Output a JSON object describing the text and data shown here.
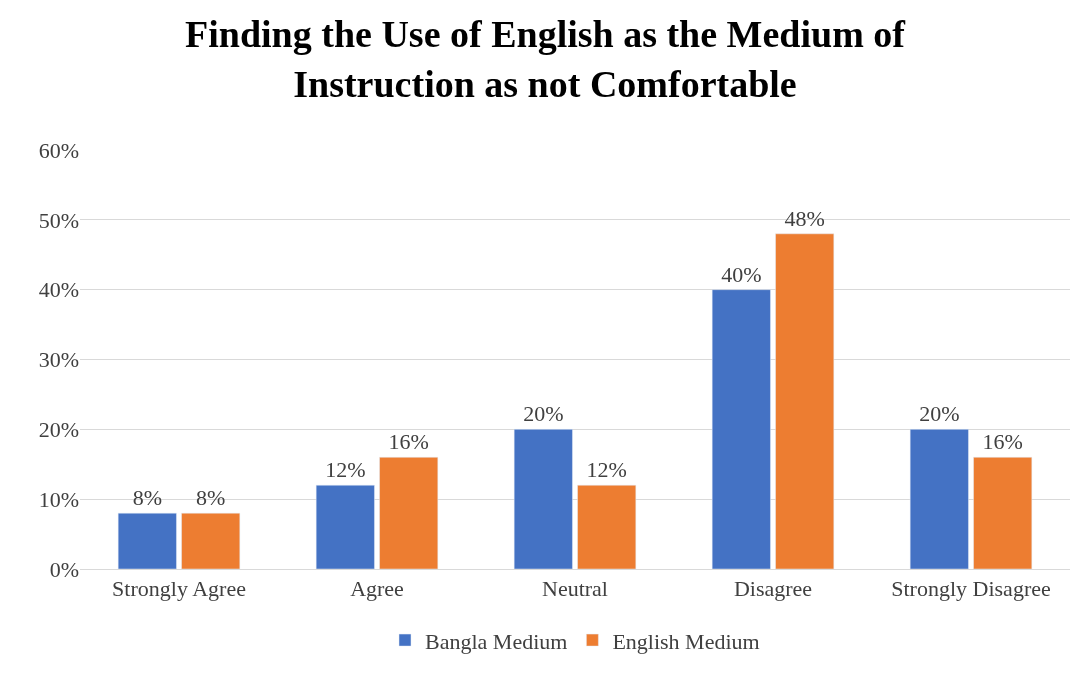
{
  "chart_data": {
    "type": "bar",
    "title": "Finding the Use of English as the Medium of Instruction as not Comfortable",
    "categories": [
      "Strongly Agree",
      "Agree",
      "Neutral",
      "Disagree",
      "Strongly Disagree"
    ],
    "series": [
      {
        "name": "Bangla Medium",
        "color": "#4472c4",
        "values": [
          8,
          12,
          20,
          40,
          20
        ],
        "value_labels": [
          "8%",
          "12%",
          "20%",
          "40%",
          "20%"
        ]
      },
      {
        "name": "English Medium",
        "color": "#ed7d31",
        "values": [
          8,
          16,
          12,
          48,
          16
        ],
        "value_labels": [
          "8%",
          "16%",
          "12%",
          "48%",
          "16%"
        ]
      }
    ],
    "ylim": [
      0,
      60
    ],
    "yticks": [
      {
        "value": 0,
        "label": "0%"
      },
      {
        "value": 10,
        "label": "10%"
      },
      {
        "value": 20,
        "label": "20%"
      },
      {
        "value": 30,
        "label": "30%"
      },
      {
        "value": 40,
        "label": "40%"
      },
      {
        "value": 50,
        "label": "50%"
      },
      {
        "value": 60,
        "label": "60%"
      }
    ],
    "grid": "y",
    "legend": "bottom"
  }
}
